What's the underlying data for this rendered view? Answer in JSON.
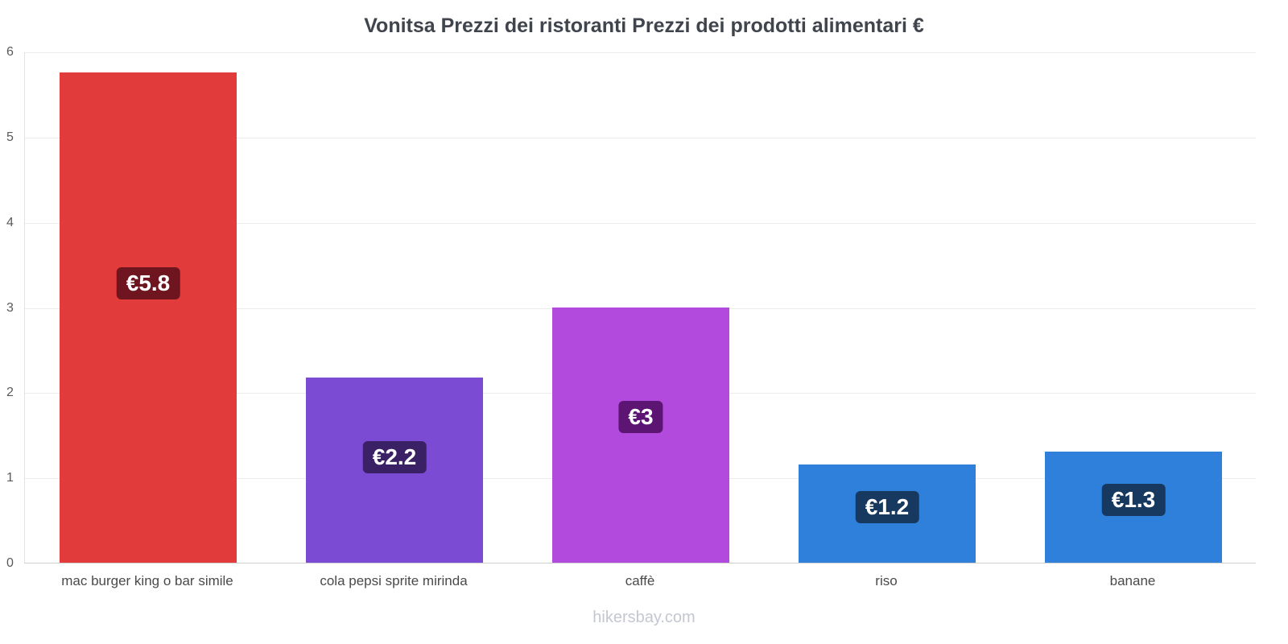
{
  "chart_data": {
    "type": "bar",
    "title": "Vonitsa Prezzi dei ristoranti Prezzi dei prodotti alimentari €",
    "categories": [
      "mac burger king o bar simile",
      "cola pepsi sprite mirinda",
      "caffè",
      "riso",
      "banane"
    ],
    "values": [
      5.75,
      2.17,
      3,
      1.15,
      1.3
    ],
    "value_labels": [
      "€5.8",
      "€2.2",
      "€3",
      "€1.2",
      "€1.3"
    ],
    "bar_colors": [
      "#e23b3b",
      "#7c4bd4",
      "#b34ade",
      "#2f80da",
      "#2f80da"
    ],
    "value_label_bg": [
      "#6f1520",
      "#3a2166",
      "#5c1572",
      "#17395f",
      "#17395f"
    ],
    "xlabel": "",
    "ylabel": "",
    "ylim": [
      0,
      6
    ],
    "yticks": [
      0,
      1,
      2,
      3,
      4,
      5,
      6
    ],
    "grid": true,
    "legend": "none",
    "footer": "hikersbay.com"
  }
}
